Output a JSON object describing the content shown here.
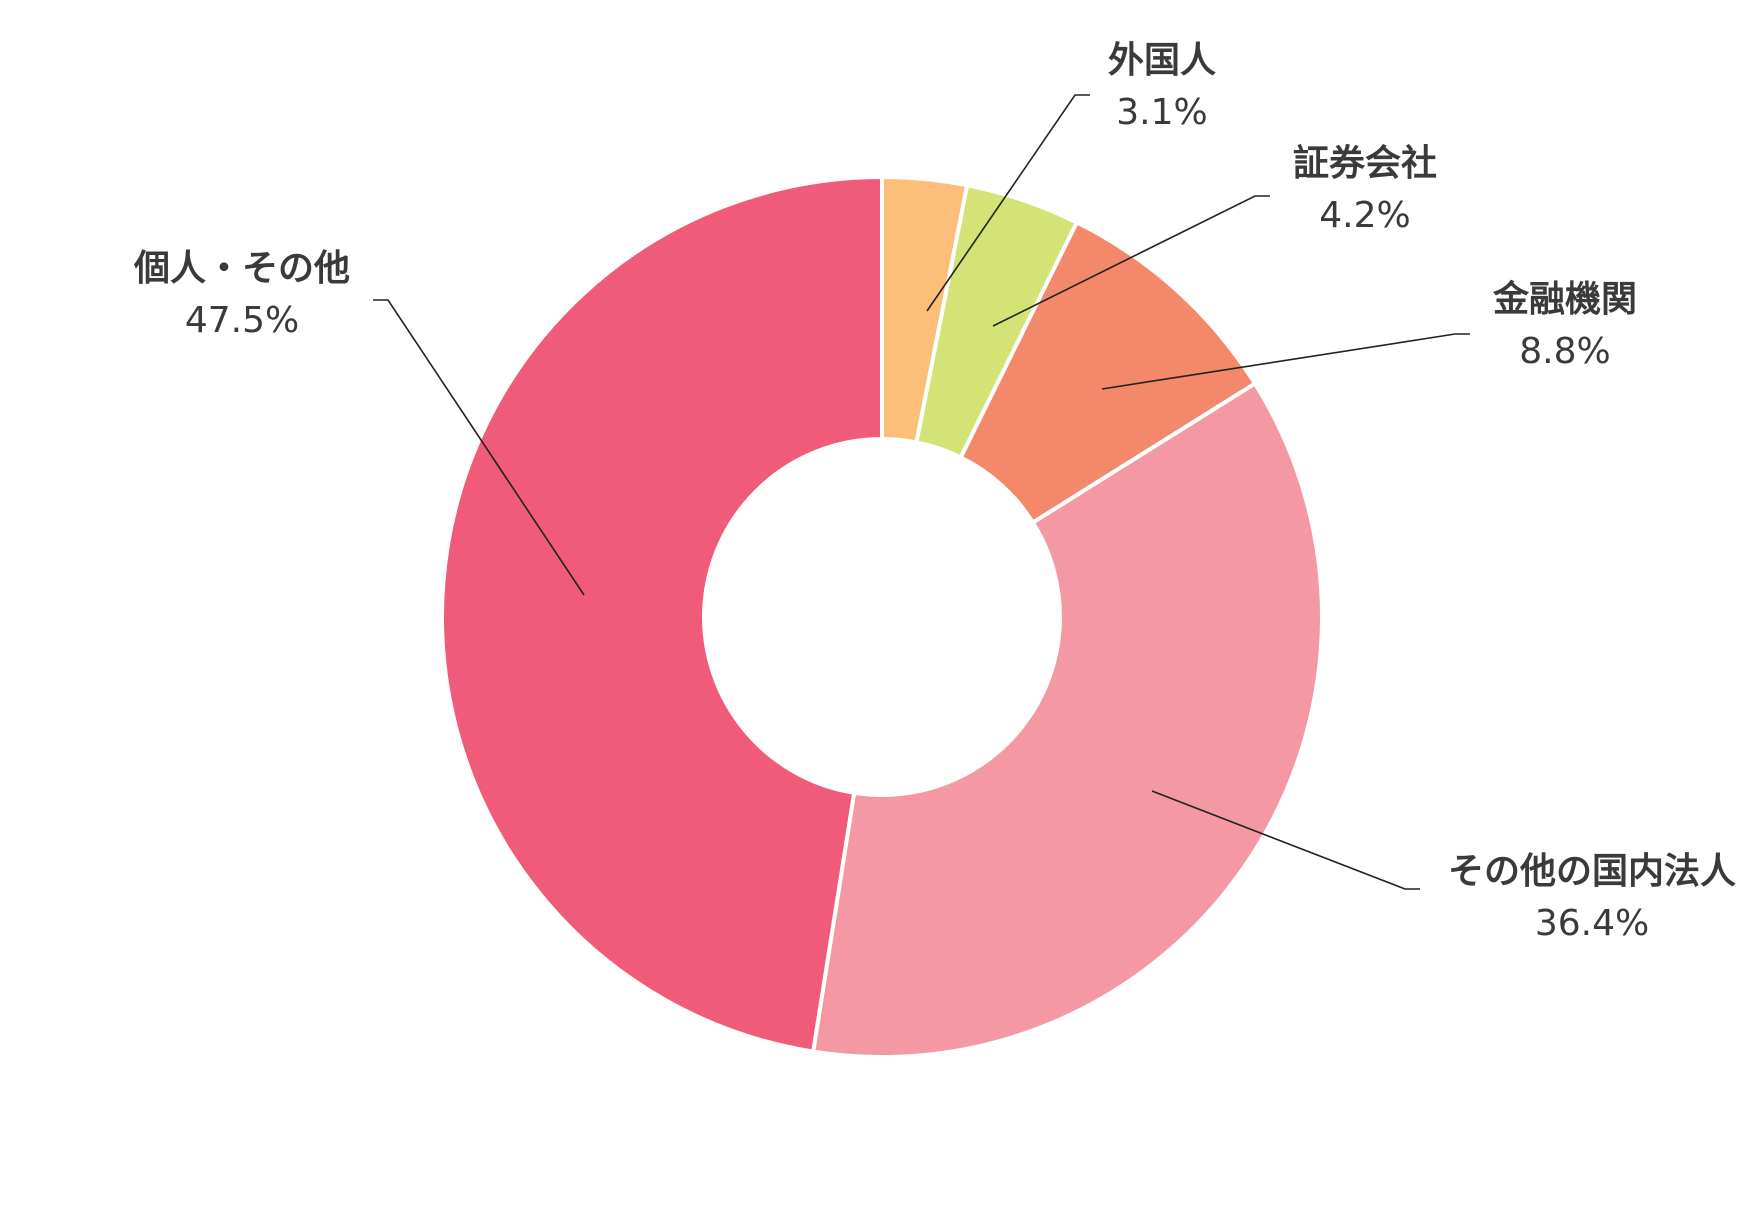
{
  "chart_data": {
    "type": "pie",
    "donut": true,
    "start": "top",
    "direction": "clockwise",
    "title": "",
    "slices": [
      {
        "label": "外国人",
        "value": 3.1,
        "value_label": "3.1%",
        "color": "#fbbf7a"
      },
      {
        "label": "証券会社",
        "value": 4.2,
        "value_label": "4.2%",
        "color": "#d4e375"
      },
      {
        "label": "金融機関",
        "value": 8.8,
        "value_label": "8.8%",
        "color": "#f4886a"
      },
      {
        "label": "その他の国内法人",
        "value": 36.4,
        "value_label": "36.4%",
        "color": "#f498a3"
      },
      {
        "label": "個人・その他",
        "value": 47.5,
        "value_label": "47.5%",
        "color": "#f05b7a"
      }
    ]
  }
}
